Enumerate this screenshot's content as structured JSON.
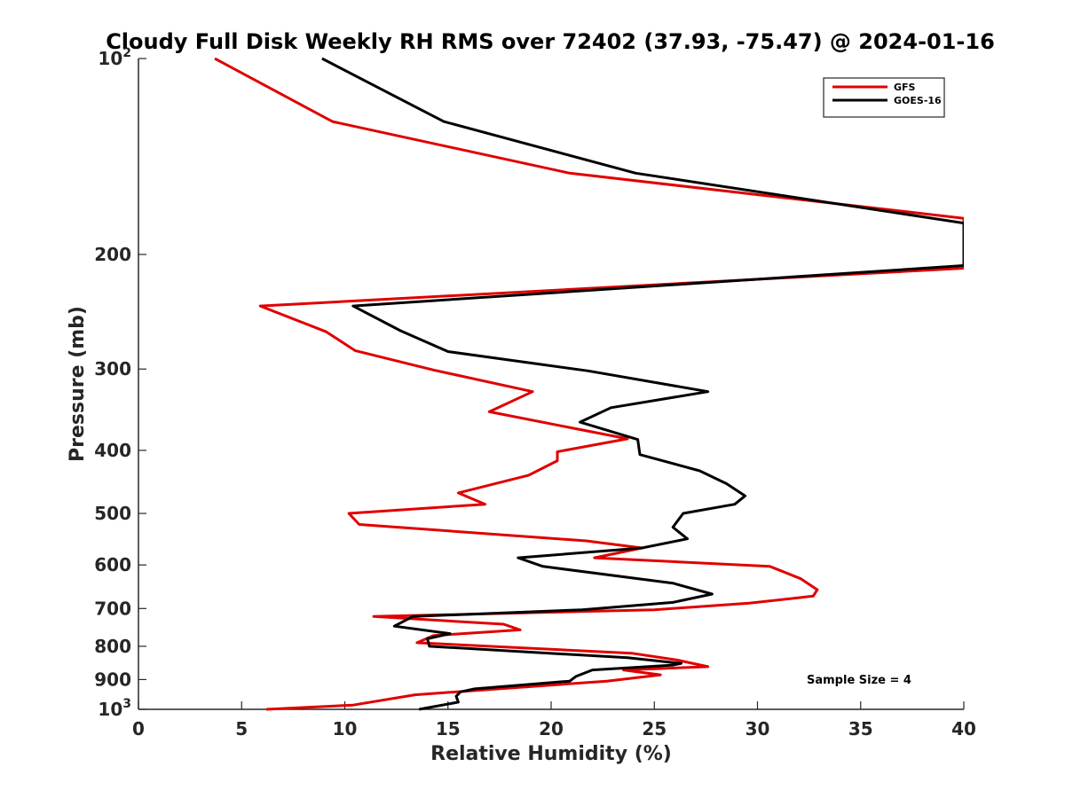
{
  "chart_data": {
    "type": "line",
    "title": "Cloudy Full Disk Weekly RH RMS over 72402 (37.93, -75.47) @ 2024-01-16",
    "xlabel": "Relative Humidity (%)",
    "ylabel": "Pressure (mb)",
    "xlim": [
      0,
      40
    ],
    "ylim": [
      100,
      1000
    ],
    "yscale": "log",
    "y_reversed": true,
    "grid": false,
    "legend_position": "top-right",
    "xticks": [
      "0",
      "5",
      "10",
      "15",
      "20",
      "25",
      "30",
      "35",
      "40"
    ],
    "yticks": [
      {
        "value": 100,
        "base": "10",
        "exp": "2"
      },
      {
        "value": 200,
        "label": "200"
      },
      {
        "value": 300,
        "label": "300"
      },
      {
        "value": 400,
        "label": "400"
      },
      {
        "value": 500,
        "label": "500"
      },
      {
        "value": 600,
        "label": "600"
      },
      {
        "value": 700,
        "label": "700"
      },
      {
        "value": 800,
        "label": "800"
      },
      {
        "value": 900,
        "label": "900"
      },
      {
        "value": 1000,
        "base": "10",
        "exp": "3"
      }
    ],
    "annotation": "Sample Size = 4",
    "series": [
      {
        "name": "GFS",
        "color": "#e00000",
        "points": [
          [
            3.7,
            100
          ],
          [
            9.4,
            125
          ],
          [
            20.9,
            150
          ],
          [
            40.0,
            176
          ],
          [
            40.0,
            210
          ],
          [
            30.5,
            218
          ],
          [
            5.9,
            240
          ],
          [
            9.1,
            263
          ],
          [
            10.5,
            281
          ],
          [
            14.3,
            301
          ],
          [
            19.1,
            325
          ],
          [
            17.0,
            349
          ],
          [
            23.7,
            384
          ],
          [
            20.3,
            402
          ],
          [
            20.3,
            415
          ],
          [
            18.9,
            437
          ],
          [
            15.5,
            465
          ],
          [
            16.8,
            484
          ],
          [
            10.2,
            500
          ],
          [
            10.7,
            520
          ],
          [
            21.7,
            551
          ],
          [
            24.4,
            565
          ],
          [
            22.1,
            585
          ],
          [
            30.6,
            603
          ],
          [
            32.1,
            630
          ],
          [
            32.9,
            655
          ],
          [
            32.7,
            670
          ],
          [
            29.6,
            687
          ],
          [
            25.0,
            703
          ],
          [
            11.4,
            720
          ],
          [
            17.7,
            740
          ],
          [
            18.5,
            755
          ],
          [
            14.3,
            770
          ],
          [
            13.5,
            790
          ],
          [
            23.9,
            820
          ],
          [
            26.1,
            840
          ],
          [
            27.6,
            860
          ],
          [
            23.5,
            870
          ],
          [
            25.3,
            885
          ],
          [
            22.7,
            905
          ],
          [
            13.4,
            950
          ],
          [
            10.4,
            985
          ],
          [
            6.2,
            1000
          ]
        ]
      },
      {
        "name": "GOES-16",
        "color": "#000000",
        "points": [
          [
            8.9,
            100
          ],
          [
            14.8,
            125
          ],
          [
            24.1,
            150
          ],
          [
            40.0,
            179
          ],
          [
            40.0,
            208
          ],
          [
            10.4,
            240
          ],
          [
            12.7,
            262
          ],
          [
            15.0,
            282
          ],
          [
            21.8,
            302
          ],
          [
            27.6,
            325
          ],
          [
            22.9,
            344
          ],
          [
            21.4,
            362
          ],
          [
            24.2,
            385
          ],
          [
            24.3,
            406
          ],
          [
            27.2,
            430
          ],
          [
            28.5,
            450
          ],
          [
            29.4,
            470
          ],
          [
            28.9,
            484
          ],
          [
            26.4,
            500
          ],
          [
            25.9,
            525
          ],
          [
            26.6,
            547
          ],
          [
            24.4,
            565
          ],
          [
            18.4,
            585
          ],
          [
            19.6,
            603
          ],
          [
            25.9,
            640
          ],
          [
            27.8,
            665
          ],
          [
            25.9,
            685
          ],
          [
            21.5,
            703
          ],
          [
            13.3,
            720
          ],
          [
            12.4,
            745
          ],
          [
            15.1,
            765
          ],
          [
            14.0,
            779
          ],
          [
            14.1,
            800
          ],
          [
            23.7,
            833
          ],
          [
            26.3,
            850
          ],
          [
            25.9,
            855
          ],
          [
            22.0,
            870
          ],
          [
            21.2,
            890
          ],
          [
            20.9,
            905
          ],
          [
            16.3,
            930
          ],
          [
            15.6,
            940
          ],
          [
            15.4,
            955
          ],
          [
            15.5,
            975
          ],
          [
            13.6,
            1000
          ]
        ]
      }
    ]
  }
}
